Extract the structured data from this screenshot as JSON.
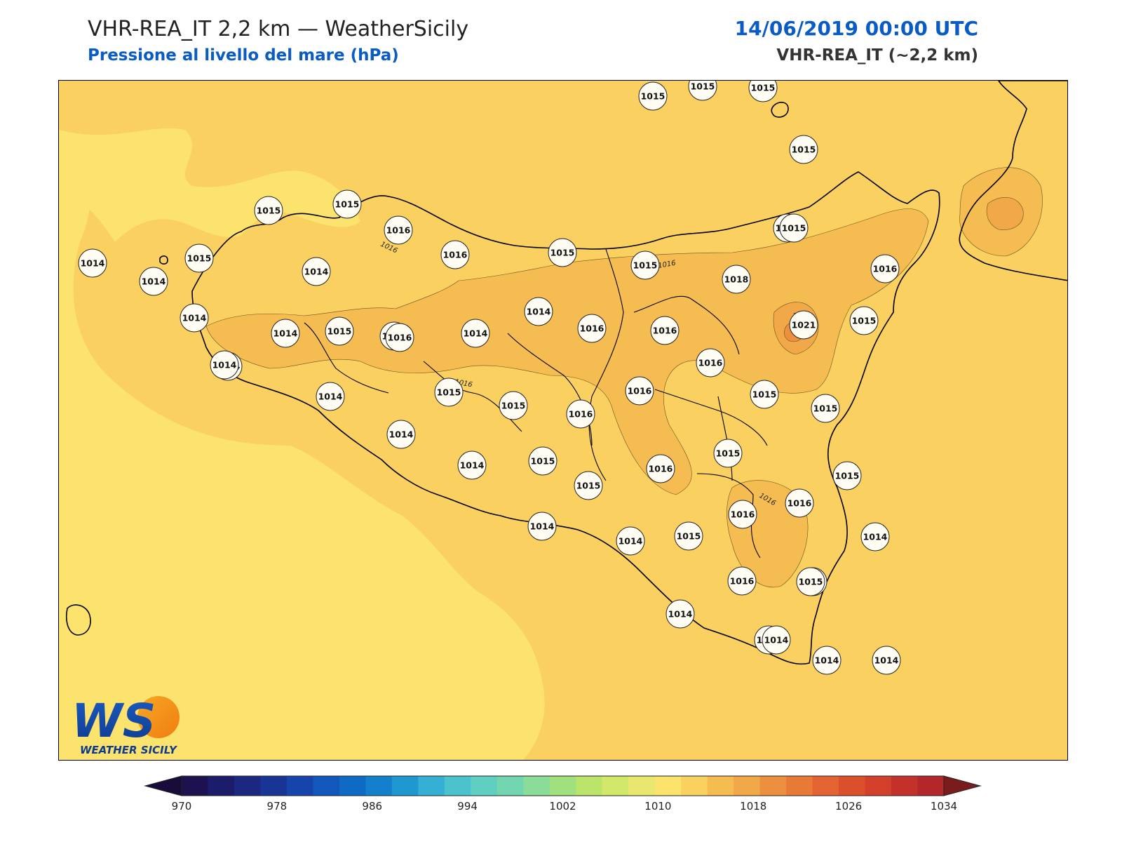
{
  "header": {
    "title": "VHR-REA_IT 2,2 km — WeatherSicily",
    "subtitle": "Pressione al livello del mare (hPa)",
    "date": "14/06/2019 00:00 UTC",
    "model": "VHR-REA_IT (~2,2 km)"
  },
  "colors": {
    "accent_blue": "#0a5bc4",
    "sea_light": "#fbe36e",
    "land_base": "#fad061",
    "high_1": "#f5bc52",
    "high_2": "#f0a848",
    "outline": "#000000"
  },
  "logo": {
    "text": "WS",
    "caption": "WEATHER SICILY"
  },
  "contour_labels": [
    "1016",
    "1016",
    "1016",
    "1016",
    "1016"
  ],
  "stations": [
    "1015",
    "1015",
    "1015",
    "1015",
    "1014",
    "1014",
    "1015",
    "1015",
    "1015",
    "1016",
    "1016",
    "1015",
    "1015",
    "1014",
    "1014",
    "1014",
    "1014",
    "1015",
    "1016",
    "1018",
    "1016",
    "1015",
    "1014",
    "1014",
    "1016",
    "1016",
    "1016",
    "1021",
    "1015",
    "1014",
    "1014",
    "1016",
    "1015",
    "1016",
    "1015",
    "1014",
    "1015",
    "1016",
    "1016",
    "1015",
    "1014",
    "1015",
    "1016",
    "1015",
    "1016",
    "1014",
    "1014",
    "1016",
    "1015",
    "1015",
    "1014",
    "1015",
    "1014",
    "1015",
    "1016",
    "1015",
    "1014",
    "1014",
    "1014",
    "1014"
  ],
  "colorbar": {
    "levels_min": 970,
    "levels_max": 1034,
    "step": 2,
    "tick_labels": [
      "970",
      "978",
      "986",
      "994",
      "1002",
      "1010",
      "1018",
      "1026",
      "1034"
    ],
    "colors": [
      "#1e1150",
      "#1c1d6a",
      "#1c2880",
      "#183596",
      "#1545aa",
      "#1257bb",
      "#0f6ac5",
      "#1280cc",
      "#1f97d1",
      "#35b0d4",
      "#4ac3cd",
      "#5fcfc2",
      "#74d6b1",
      "#8adc99",
      "#a2e07f",
      "#bbe46a",
      "#d2e86a",
      "#e8e871",
      "#fbe36e",
      "#fad061",
      "#f5bc52",
      "#f0a848",
      "#ec9040",
      "#e87a38",
      "#e36432",
      "#dc4f2d",
      "#d23f2b",
      "#c4302a",
      "#b32629"
    ]
  }
}
